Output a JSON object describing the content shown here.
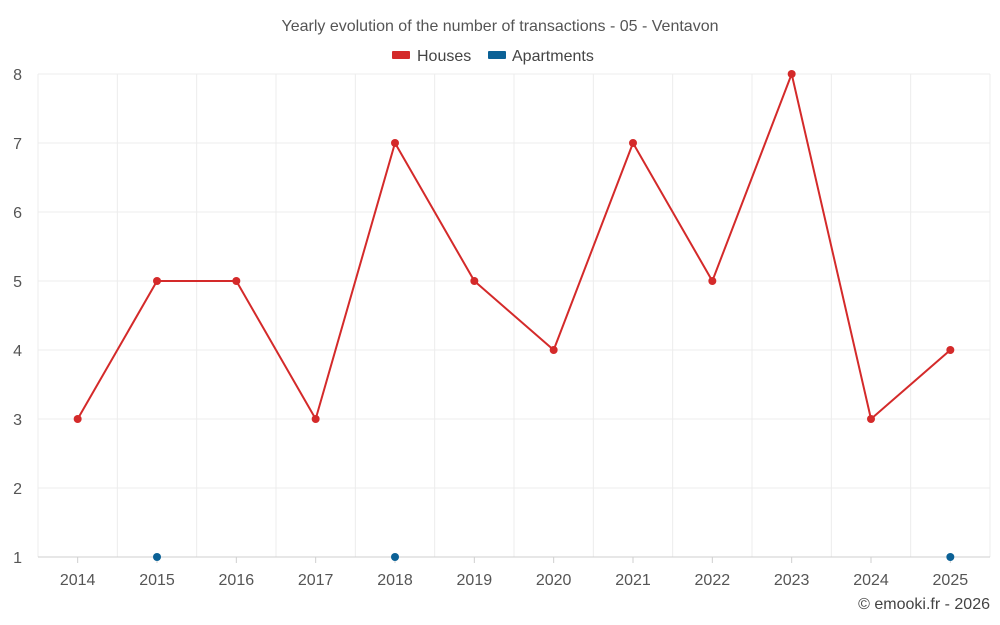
{
  "chart_data": {
    "type": "line",
    "title": "Yearly evolution of the number of transactions - 05 - Ventavon",
    "categories": [
      "2014",
      "2015",
      "2016",
      "2017",
      "2018",
      "2019",
      "2020",
      "2021",
      "2022",
      "2023",
      "2024",
      "2025"
    ],
    "ylim": [
      1,
      8
    ],
    "yticks": [
      1,
      2,
      3,
      4,
      5,
      6,
      7,
      8
    ],
    "grid": true,
    "legend_position": "top-center",
    "series": [
      {
        "name": "Houses",
        "color": "#d42a2a",
        "connected": true,
        "values": [
          3,
          5,
          5,
          3,
          7,
          5,
          4,
          7,
          5,
          8,
          3,
          4
        ]
      },
      {
        "name": "Apartments",
        "color": "#0b6196",
        "connected": false,
        "values": [
          null,
          1,
          null,
          null,
          1,
          null,
          null,
          null,
          null,
          null,
          null,
          1
        ]
      }
    ],
    "credit": "© emooki.fr - 2026"
  }
}
